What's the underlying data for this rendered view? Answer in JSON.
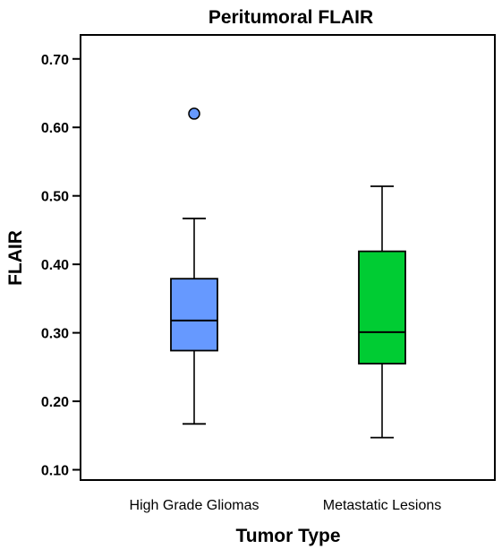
{
  "chart_data": {
    "type": "boxplot",
    "title": "Peritumoral FLAIR",
    "xlabel": "Tumor Type",
    "ylabel": "FLAIR",
    "ylim": [
      0.085,
      0.735
    ],
    "yticks": [
      0.1,
      0.2,
      0.3,
      0.4,
      0.5,
      0.6,
      0.7
    ],
    "ytick_labels": [
      "0.10",
      "0.20",
      "0.30",
      "0.40",
      "0.50",
      "0.60",
      "0.70"
    ],
    "grid": false,
    "categories": [
      "High Grade Gliomas",
      "Metastatic Lesions"
    ],
    "boxes": [
      {
        "category": "High Grade Gliomas",
        "whisker_low": 0.167,
        "q1": 0.274,
        "median": 0.318,
        "q3": 0.379,
        "whisker_high": 0.467,
        "outliers": [
          0.62
        ],
        "color": "#6699ff"
      },
      {
        "category": "Metastatic Lesions",
        "whisker_low": 0.147,
        "q1": 0.255,
        "median": 0.301,
        "q3": 0.419,
        "whisker_high": 0.514,
        "outliers": [],
        "color": "#00cc33"
      }
    ]
  }
}
